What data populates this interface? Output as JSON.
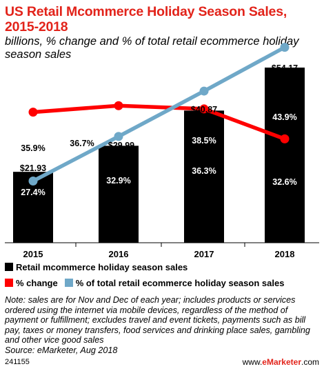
{
  "header": {
    "title": "US Retail Mcommerce Holiday Season Sales, 2015-2018",
    "subtitle": "billions, % change and % of total retail ecommerce holiday season sales"
  },
  "chart_data": {
    "type": "bar",
    "categories": [
      "2015",
      "2016",
      "2017",
      "2018"
    ],
    "series": [
      {
        "name": "Retail mcommerce holiday season sales",
        "kind": "bar",
        "color": "#000000",
        "values": [
          21.93,
          29.99,
          40.87,
          54.17
        ],
        "labels": [
          "$21.93",
          "$29.99",
          "$40.87",
          "$54.17"
        ]
      },
      {
        "name": "% change",
        "kind": "line",
        "color": "#ff0000",
        "values": [
          35.9,
          36.7,
          36.3,
          32.6
        ],
        "labels": [
          "35.9%",
          "36.7%",
          "36.3%",
          "32.6%"
        ]
      },
      {
        "name": "% of total retail ecommerce holiday season sales",
        "kind": "line",
        "color": "#6fa8c8",
        "values": [
          27.4,
          32.9,
          38.5,
          43.9
        ],
        "labels": [
          "27.4%",
          "32.9%",
          "38.5%",
          "43.9%"
        ]
      }
    ],
    "ylim": [
      0,
      60
    ],
    "grid": false,
    "legend": "bottom"
  },
  "legend": {
    "items": [
      {
        "label": "Retail mcommerce holiday season sales",
        "color": "#000000"
      },
      {
        "label": "% change",
        "color": "#ff0000"
      },
      {
        "label": "% of total retail ecommerce holiday season sales",
        "color": "#6fa8c8"
      }
    ]
  },
  "note": {
    "text": "Note: sales are for Nov and Dec of each year; includes products or services ordered using the internet via mobile devices, regardless of the method of payment or fulfillment; excludes travel and event tickets, payments such as bill pay, taxes or money transfers, food services and drinking place sales, gambling and other vice good sales",
    "source": "Source: eMarketer, Aug 2018"
  },
  "footer": {
    "chart_id": "241155",
    "brand_prefix": "www.",
    "brand_name": "eMarketer",
    "brand_suffix": ".com"
  }
}
